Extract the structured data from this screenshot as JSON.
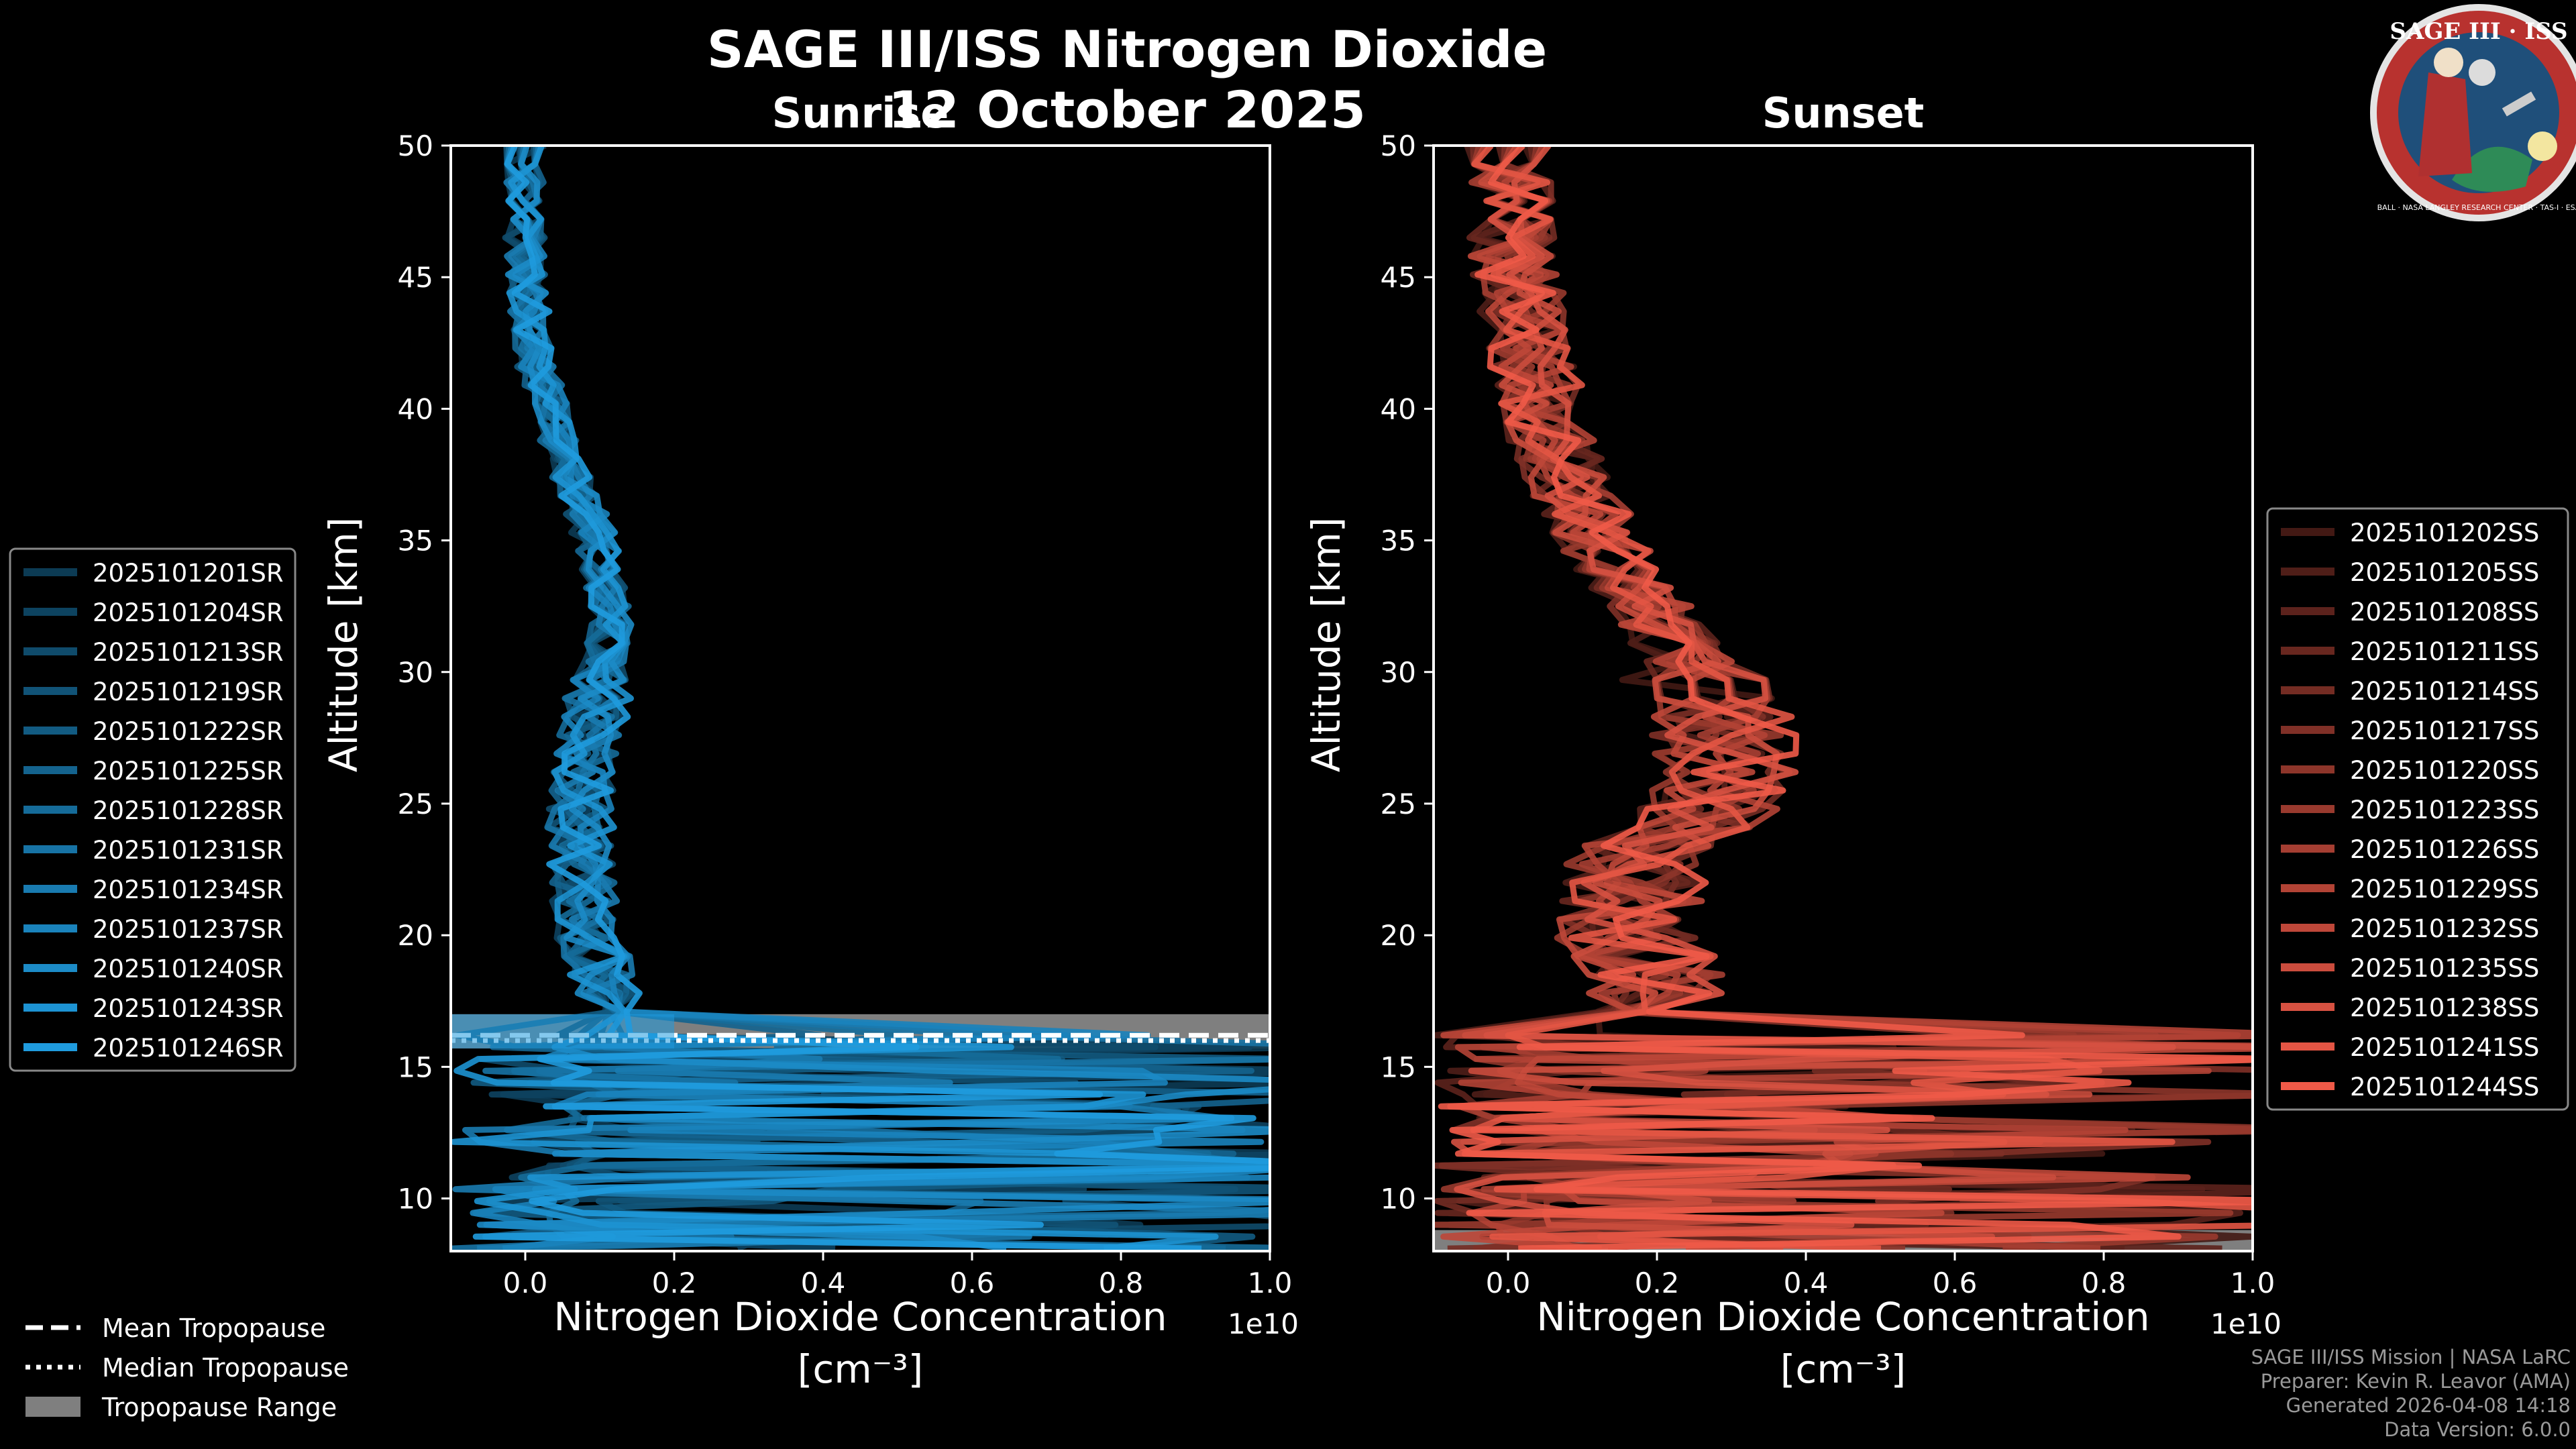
{
  "title": "SAGE III/ISS Nitrogen Dioxide",
  "date": "12 October 2025",
  "logo": {
    "text": "SAGE III · ISS",
    "ring_text": "BALL · NASA LANGLEY RESEARCH CENTER · TAS-I · ESA",
    "colors": {
      "ring": "#b8322f",
      "inner": "#1f4f7a",
      "rim": "#e4e4e4"
    }
  },
  "colors": {
    "sunrise": "#1f9bde",
    "sunset": "#ef5a48",
    "tropopause_range": "#7f7f7f"
  },
  "chart_data": [
    {
      "type": "line",
      "title": "Sunrise",
      "xlabel": "Nitrogen Dioxide Concentration",
      "xunit": "[cm⁻³]",
      "x_exponent": "1e10",
      "ylabel": "Altitude [km]",
      "xlim": [
        -0.1,
        1.0
      ],
      "ylim": [
        8,
        50
      ],
      "xticks": [
        "0.0",
        "0.2",
        "0.4",
        "0.6",
        "0.8",
        "1.0"
      ],
      "yticks": [
        "10",
        "15",
        "20",
        "25",
        "30",
        "35",
        "40",
        "45",
        "50"
      ],
      "series": [
        {
          "name": "2025101201SR"
        },
        {
          "name": "2025101204SR"
        },
        {
          "name": "2025101213SR"
        },
        {
          "name": "2025101219SR"
        },
        {
          "name": "2025101222SR"
        },
        {
          "name": "2025101225SR"
        },
        {
          "name": "2025101228SR"
        },
        {
          "name": "2025101231SR"
        },
        {
          "name": "2025101234SR"
        },
        {
          "name": "2025101237SR"
        },
        {
          "name": "2025101240SR"
        },
        {
          "name": "2025101243SR"
        },
        {
          "name": "2025101246SR"
        }
      ],
      "profile_mean": [
        [
          0.0,
          50
        ],
        [
          0.0,
          46
        ],
        [
          0.01,
          42
        ],
        [
          0.05,
          38
        ],
        [
          0.09,
          35
        ],
        [
          0.11,
          32
        ],
        [
          0.09,
          29
        ],
        [
          0.07,
          26
        ],
        [
          0.07,
          22
        ],
        [
          0.09,
          19
        ],
        [
          0.11,
          17
        ],
        [
          0.05,
          16
        ],
        [
          0.04,
          15
        ],
        [
          0.04,
          13
        ],
        [
          0.04,
          11
        ],
        [
          0.02,
          8
        ]
      ],
      "tropopause": {
        "mean": 16.2,
        "median": 16.0,
        "range": [
          15.7,
          17.0
        ]
      }
    },
    {
      "type": "line",
      "title": "Sunset",
      "xlabel": "Nitrogen Dioxide Concentration",
      "xunit": "[cm⁻³]",
      "x_exponent": "1e10",
      "ylabel": "Altitude [km]",
      "xlim": [
        -0.1,
        1.0
      ],
      "ylim": [
        8,
        50
      ],
      "xticks": [
        "0.0",
        "0.2",
        "0.4",
        "0.6",
        "0.8",
        "1.0"
      ],
      "yticks": [
        "10",
        "15",
        "20",
        "25",
        "30",
        "35",
        "40",
        "45",
        "50"
      ],
      "series": [
        {
          "name": "2025101202SS"
        },
        {
          "name": "2025101205SS"
        },
        {
          "name": "2025101208SS"
        },
        {
          "name": "2025101211SS"
        },
        {
          "name": "2025101214SS"
        },
        {
          "name": "2025101217SS"
        },
        {
          "name": "2025101220SS"
        },
        {
          "name": "2025101223SS"
        },
        {
          "name": "2025101226SS"
        },
        {
          "name": "2025101229SS"
        },
        {
          "name": "2025101232SS"
        },
        {
          "name": "2025101235SS"
        },
        {
          "name": "2025101238SS"
        },
        {
          "name": "2025101241SS"
        },
        {
          "name": "2025101244SS"
        }
      ],
      "profile_mean": [
        [
          0.0,
          50
        ],
        [
          0.01,
          46
        ],
        [
          0.03,
          42
        ],
        [
          0.08,
          38
        ],
        [
          0.16,
          34
        ],
        [
          0.26,
          31
        ],
        [
          0.33,
          28
        ],
        [
          0.32,
          25
        ],
        [
          0.2,
          23
        ],
        [
          0.18,
          20
        ],
        [
          0.24,
          18
        ],
        [
          0.12,
          16
        ],
        [
          0.15,
          14
        ],
        [
          0.12,
          12
        ],
        [
          0.05,
          9
        ],
        [
          0.02,
          8
        ]
      ],
      "tropopause": {
        "range": [
          8.0,
          8.8
        ]
      }
    }
  ],
  "tropo_legend": {
    "mean": "Mean Tropopause",
    "median": "Median Tropopause",
    "range": "Tropopause Range"
  },
  "credits": [
    "SAGE III/ISS Mission | NASA LaRC",
    "Preparer: Kevin R. Leavor (AMA)",
    "Generated 2026-04-08 14:18",
    "Data Version: 6.0.0"
  ]
}
